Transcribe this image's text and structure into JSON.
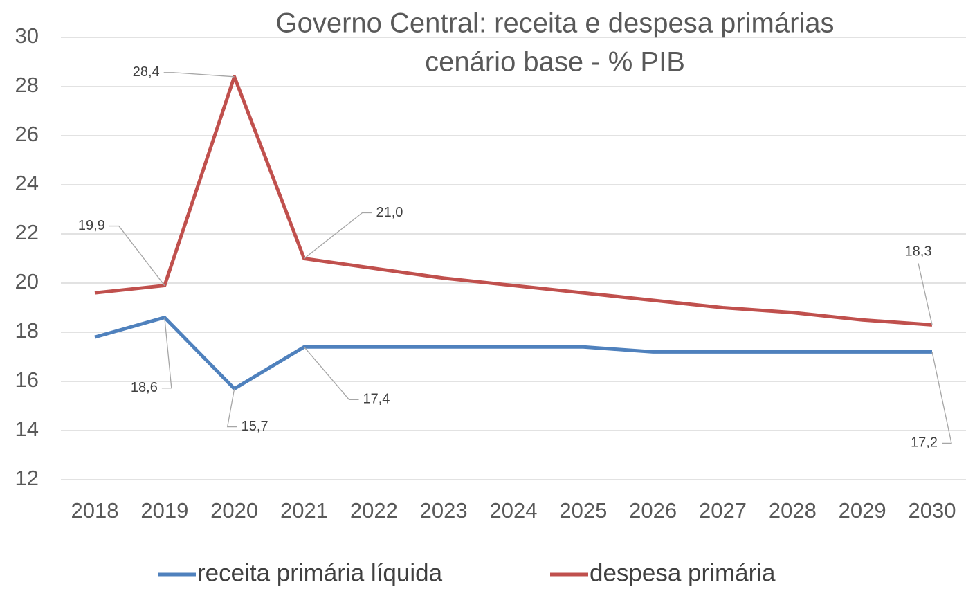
{
  "chart_data": {
    "type": "line",
    "title": "Governo Central: receita e despesa primárias",
    "subtitle": "cenário base - % PIB",
    "categories": [
      "2018",
      "2019",
      "2020",
      "2021",
      "2022",
      "2023",
      "2024",
      "2025",
      "2026",
      "2027",
      "2028",
      "2029",
      "2030"
    ],
    "series": [
      {
        "name": "receita primária líquida",
        "color": "#4f81bd",
        "values": [
          17.8,
          18.6,
          15.7,
          17.4,
          17.4,
          17.4,
          17.4,
          17.4,
          17.2,
          17.2,
          17.2,
          17.2,
          17.2
        ],
        "value_labels": [
          null,
          "18,6",
          "15,7",
          "17,4",
          null,
          null,
          null,
          null,
          null,
          null,
          null,
          null,
          "17,2"
        ]
      },
      {
        "name": "despesa primária",
        "color": "#c0504d",
        "values": [
          19.6,
          19.9,
          28.4,
          21.0,
          20.6,
          20.2,
          19.9,
          19.6,
          19.3,
          19.0,
          18.8,
          18.5,
          18.3
        ],
        "value_labels": [
          null,
          "19,9",
          "28,4",
          "21,0",
          null,
          null,
          null,
          null,
          null,
          null,
          null,
          null,
          "18,3"
        ]
      }
    ],
    "ylim": [
      12,
      30
    ],
    "yticks": [
      12,
      14,
      16,
      18,
      20,
      22,
      24,
      26,
      28,
      30
    ],
    "grid": true,
    "legend": "bottom"
  }
}
